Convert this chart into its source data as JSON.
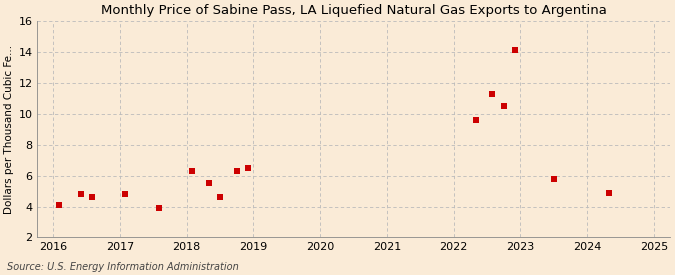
{
  "title": "Monthly Price of Sabine Pass, LA Liquefied Natural Gas Exports to Argentina",
  "ylabel": "Dollars per Thousand Cubic Fe...",
  "source": "Source: U.S. Energy Information Administration",
  "background_color": "#faebd7",
  "plot_bg_color": "#faebd7",
  "scatter_color": "#cc0000",
  "x_values": [
    2016.08,
    2016.42,
    2016.58,
    2017.08,
    2017.58,
    2018.08,
    2018.33,
    2018.5,
    2018.75,
    2018.92,
    2022.33,
    2022.58,
    2022.75,
    2022.92,
    2023.5,
    2024.33
  ],
  "y_values": [
    4.1,
    4.8,
    4.6,
    4.8,
    3.9,
    6.3,
    5.5,
    4.6,
    6.3,
    6.5,
    9.6,
    11.3,
    10.5,
    14.1,
    5.8,
    4.9
  ],
  "xlim": [
    2015.75,
    2025.25
  ],
  "ylim": [
    2,
    16
  ],
  "xticks": [
    2016,
    2017,
    2018,
    2019,
    2020,
    2021,
    2022,
    2023,
    2024,
    2025
  ],
  "yticks": [
    2,
    4,
    6,
    8,
    10,
    12,
    14,
    16
  ],
  "marker_size": 18,
  "title_fontsize": 9.5,
  "ylabel_fontsize": 7.5,
  "tick_fontsize": 8,
  "source_fontsize": 7
}
